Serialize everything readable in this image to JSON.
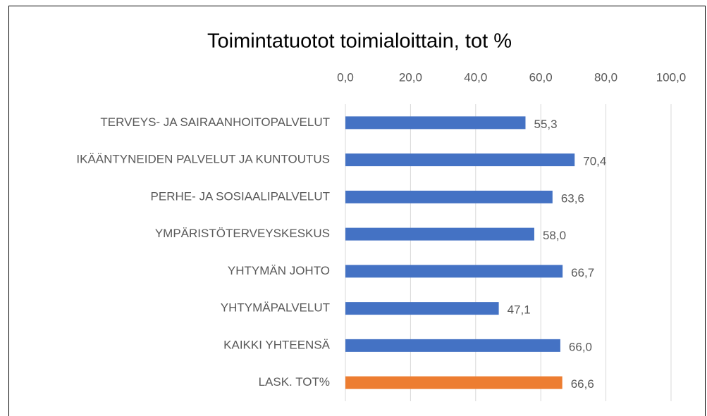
{
  "chart_data": {
    "type": "bar",
    "orientation": "horizontal",
    "title": "Toimintatuotot toimialoittain, tot %",
    "categories": [
      "TERVEYS- JA SAIRAANHOITOPALVELUT",
      "IKÄÄNTYNEIDEN PALVELUT JA KUNTOUTUS",
      "PERHE- JA SOSIAALIPALVELUT",
      "YMPÄRISTÖTERVEYSKESKUS",
      "YHTYMÄN JOHTO",
      "YHTYMÄPALVELUT",
      "KAIKKI YHTEENSÄ",
      "LASK. TOT%"
    ],
    "values": [
      55.3,
      70.4,
      63.6,
      58.0,
      66.7,
      47.1,
      66.0,
      66.6
    ],
    "value_labels": [
      "55,3",
      "70,4",
      "63,6",
      "58,0",
      "66,7",
      "47,1",
      "66,0",
      "66,6"
    ],
    "colors": [
      "#4472c4",
      "#4472c4",
      "#4472c4",
      "#4472c4",
      "#4472c4",
      "#4472c4",
      "#4472c4",
      "#ed7d31"
    ],
    "xlim": [
      0,
      100
    ],
    "xticks": [
      {
        "value": 0,
        "label": "0,0"
      },
      {
        "value": 20,
        "label": "20,0"
      },
      {
        "value": 40,
        "label": "40,0"
      },
      {
        "value": 60,
        "label": "60,0"
      },
      {
        "value": 80,
        "label": "80,0"
      },
      {
        "value": 100,
        "label": "100,0"
      }
    ],
    "grid": true
  }
}
